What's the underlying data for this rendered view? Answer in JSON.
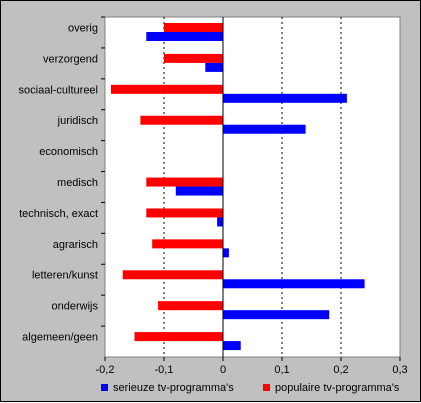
{
  "chart_data": {
    "type": "bar",
    "orientation": "horizontal",
    "categories": [
      "overig",
      "verzorgend",
      "sociaal-cultureel",
      "juridisch",
      "economisch",
      "medisch",
      "technisch, exact",
      "agrarisch",
      "letteren/kunst",
      "onderwijs",
      "algemeen/geen"
    ],
    "series": [
      {
        "name": "populaire tv-programma's",
        "color": "#ff0000",
        "values": [
          -0.1,
          -0.1,
          -0.19,
          -0.14,
          0.0,
          -0.13,
          -0.13,
          -0.12,
          -0.17,
          -0.11,
          -0.15
        ]
      },
      {
        "name": "serieuze tv-programma's",
        "color": "#0000ff",
        "values": [
          -0.13,
          -0.03,
          0.21,
          0.14,
          0.0,
          -0.08,
          -0.01,
          0.01,
          0.24,
          0.18,
          0.03
        ]
      }
    ],
    "xlim": [
      -0.2,
      0.3
    ],
    "xticks": [
      "-0,2",
      "-0,1",
      "0",
      "0,1",
      "0,2",
      "0,3"
    ],
    "grid": "vertical dashed",
    "legend_position": "bottom",
    "legend": [
      "serieuze tv-programma's",
      "populaire tv-programma's"
    ]
  }
}
